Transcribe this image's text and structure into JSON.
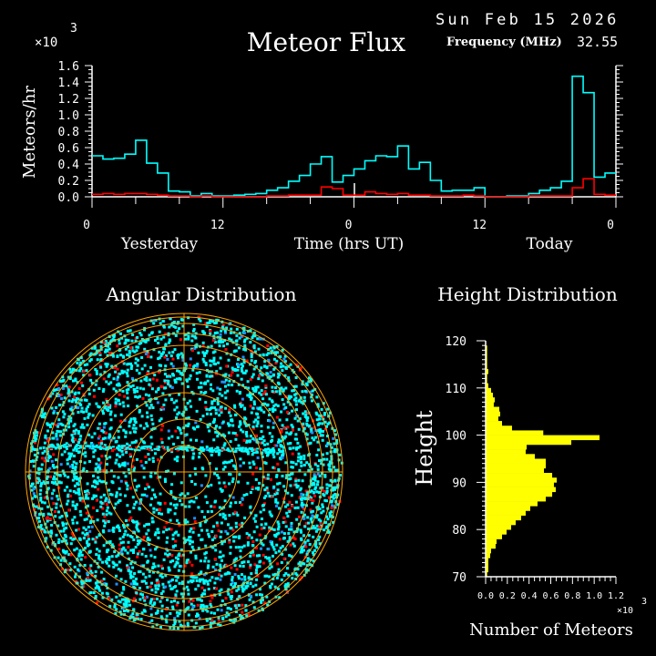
{
  "header": {
    "title": "Meteor Flux",
    "date": "Sun Feb 15 2026",
    "frequency_label": "Frequency (MHz)",
    "frequency_value": "32.55"
  },
  "colors": {
    "background": "#000000",
    "axes": "#ffffff",
    "all_meteors": "#00ffff",
    "subset_meteors": "#ff0000",
    "height_bars": "#ffff00",
    "polar_grid": "#ffa500",
    "polar_secondary_points": "#1e90ff"
  },
  "chart_data": [
    {
      "type": "line",
      "step": true,
      "ylabel": "Meteors/hr",
      "yscale_label": "×10",
      "yscale_exp": "3",
      "xlabel": "Time (hrs UT)",
      "day_labels": [
        "Yesterday",
        "Today"
      ],
      "xtick_labels": [
        "0",
        "12",
        "0",
        "12",
        "0"
      ],
      "ytick_labels": [
        "0.0",
        "0.2",
        "0.4",
        "0.6",
        "0.8",
        "1.0",
        "1.2",
        "1.4",
        "1.6"
      ],
      "xlim_hours": [
        0,
        48
      ],
      "ylim": [
        0,
        1.6
      ],
      "series": [
        {
          "color": "#00ffff",
          "values": [
            0.5,
            0.46,
            0.47,
            0.52,
            0.69,
            0.41,
            0.29,
            0.07,
            0.06,
            0.01,
            0.04,
            0.01,
            0.01,
            0.02,
            0.03,
            0.04,
            0.08,
            0.11,
            0.19,
            0.26,
            0.4,
            0.49,
            0.18,
            0.26,
            0.34,
            0.44,
            0.5,
            0.49,
            0.62,
            0.34,
            0.42,
            0.2,
            0.07,
            0.08,
            0.08,
            0.11,
            0.0,
            0.0,
            0.01,
            0.01,
            0.04,
            0.08,
            0.11,
            0.19,
            1.47,
            1.27,
            0.24,
            0.29
          ]
        },
        {
          "color": "#ff0000",
          "values": [
            0.03,
            0.04,
            0.03,
            0.04,
            0.04,
            0.03,
            0.02,
            0.01,
            0.01,
            0.0,
            0.01,
            0.0,
            0.0,
            0.0,
            0.0,
            0.0,
            0.01,
            0.01,
            0.02,
            0.02,
            0.02,
            0.12,
            0.1,
            0.02,
            0.02,
            0.06,
            0.04,
            0.03,
            0.04,
            0.02,
            0.02,
            0.01,
            0.01,
            0.01,
            0.02,
            0.01,
            0.0,
            0.0,
            0.0,
            0.0,
            0.01,
            0.01,
            0.01,
            0.01,
            0.11,
            0.22,
            0.03,
            0.02
          ]
        }
      ]
    },
    {
      "type": "scatter",
      "projection": "polar",
      "title": "Angular Distribution",
      "series_colors": [
        "#00ffff",
        "#ff0000",
        "#1e90ff"
      ]
    },
    {
      "type": "bar",
      "orientation": "horizontal",
      "title": "Height Distribution",
      "ylabel": "Height",
      "xlabel": "Number of Meteors",
      "xscale_label": "×10",
      "xscale_exp": "3",
      "ylim": [
        70,
        120
      ],
      "xlim": [
        0,
        1200
      ],
      "ytick_labels": [
        "70",
        "80",
        "90",
        "100",
        "110",
        "120"
      ],
      "xtick_labels": [
        "0.0",
        "0.2",
        "0.4",
        "0.6",
        "0.8",
        "1.0",
        "1.2"
      ],
      "bin_width_km": 1,
      "heights_from_70": [
        70.5,
        71.5,
        72.5,
        73.5,
        74.5,
        75.5,
        76.5,
        77.5,
        78.5,
        79.5,
        80.5,
        81.5,
        82.5,
        83.5,
        84.5,
        85.5,
        86.5,
        87.5,
        88.5,
        89.5,
        90.5,
        91.5,
        92.5,
        93.5,
        94.5,
        95.5,
        96.5,
        97.5,
        98.5,
        99.5,
        100.5,
        101.5,
        102.5,
        103.5,
        104.5,
        105.5,
        106.5,
        107.5,
        108.5,
        109.5,
        110.5,
        111.5,
        112.5,
        113.5,
        114.5,
        115.5,
        116.5,
        117.5,
        118.5,
        119.5
      ],
      "counts": [
        14,
        25,
        25,
        25,
        42,
        50,
        92,
        101,
        151,
        193,
        235,
        277,
        327,
        369,
        411,
        478,
        554,
        613,
        646,
        629,
        655,
        613,
        537,
        554,
        554,
        453,
        369,
        378,
        789,
        1049,
        531,
        243,
        151,
        117,
        134,
        126,
        75,
        84,
        67,
        50,
        25,
        14,
        14,
        25,
        14,
        14,
        14,
        14,
        14,
        0
      ]
    }
  ]
}
